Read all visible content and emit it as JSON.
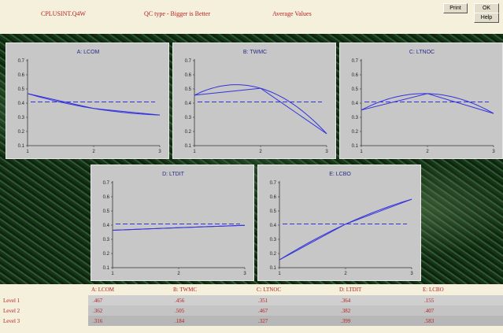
{
  "header": {
    "file_name": "CPLUSINT.Q4W",
    "qc_type": "QC type - Bigger is Better",
    "mode": "Average Values",
    "print_label": "Print",
    "ok_label": "OK",
    "help_label": "Help"
  },
  "colors": {
    "line": "#3333dd",
    "panel": "#c7c7c7",
    "header_text": "#b22222"
  },
  "charts": [
    {
      "title": "A: LCOM",
      "yticks": [
        "0.1",
        "0.2",
        "0.3",
        "0.4",
        "0.5",
        "0.6",
        "0.7"
      ],
      "xticks": [
        "1",
        "2",
        "3"
      ]
    },
    {
      "title": "B: TWMC",
      "yticks": [
        "0.1",
        "0.2",
        "0.3",
        "0.4",
        "0.5",
        "0.6",
        "0.7"
      ],
      "xticks": [
        "1",
        "2",
        "3"
      ]
    },
    {
      "title": "C: LTNOC",
      "yticks": [
        "0.1",
        "0.2",
        "0.3",
        "0.4",
        "0.5",
        "0.6",
        "0.7"
      ],
      "xticks": [
        "1",
        "2",
        "3"
      ]
    },
    {
      "title": "D: LTDIT",
      "yticks": [
        "0.1",
        "0.2",
        "0.3",
        "0.4",
        "0.5",
        "0.6",
        "0.7"
      ],
      "xticks": [
        "1",
        "2",
        "3"
      ]
    },
    {
      "title": "E: LCBO",
      "yticks": [
        "0.1",
        "0.2",
        "0.3",
        "0.4",
        "0.5",
        "0.6",
        "0.7"
      ],
      "xticks": [
        "1",
        "2",
        "3"
      ]
    }
  ],
  "chart_data": [
    {
      "type": "line",
      "title": "A: LCOM",
      "x": [
        1,
        2,
        3
      ],
      "values": [
        0.467,
        0.362,
        0.316
      ],
      "mean": 0.408,
      "ylim": [
        0.1,
        0.7
      ]
    },
    {
      "type": "line",
      "title": "B: TWMC",
      "x": [
        1,
        2,
        3
      ],
      "values": [
        0.456,
        0.505,
        0.184
      ],
      "mean": 0.408,
      "ylim": [
        0.1,
        0.7
      ]
    },
    {
      "type": "line",
      "title": "C: LTNOC",
      "x": [
        1,
        2,
        3
      ],
      "values": [
        0.351,
        0.467,
        0.327
      ],
      "mean": 0.408,
      "ylim": [
        0.1,
        0.7
      ]
    },
    {
      "type": "line",
      "title": "D: LTDIT",
      "x": [
        1,
        2,
        3
      ],
      "values": [
        0.364,
        0.382,
        0.399
      ],
      "mean": 0.408,
      "ylim": [
        0.1,
        0.7
      ]
    },
    {
      "type": "line",
      "title": "E: LCBO",
      "x": [
        1,
        2,
        3
      ],
      "values": [
        0.155,
        0.407,
        0.583
      ],
      "mean": 0.408,
      "ylim": [
        0.1,
        0.7
      ]
    }
  ],
  "table": {
    "columns": [
      "A: LCOM",
      "B: TWMC",
      "C: LTNOC",
      "D: LTDIT",
      "E: LCBO"
    ],
    "rows": [
      {
        "label": "Level 1",
        "values": [
          ".467",
          ".456",
          ".351",
          ".364",
          ".155"
        ]
      },
      {
        "label": "Level 2",
        "values": [
          ".362",
          ".505",
          ".467",
          ".382",
          ".407"
        ]
      },
      {
        "label": "Level 3",
        "values": [
          ".316",
          ".184",
          ".327",
          ".399",
          ".583"
        ]
      }
    ]
  }
}
